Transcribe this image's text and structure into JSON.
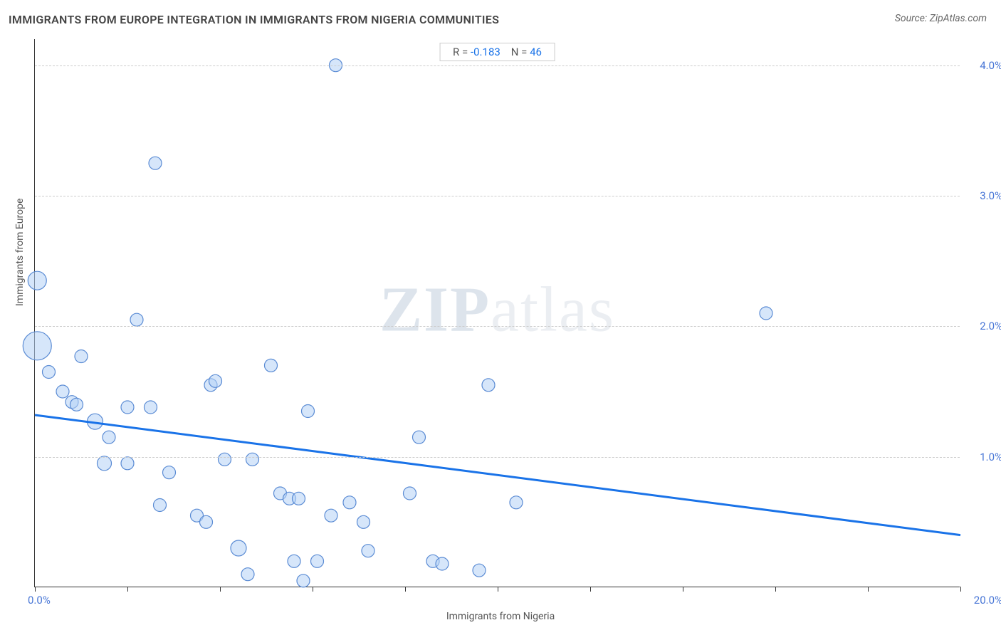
{
  "title": "IMMIGRANTS FROM EUROPE INTEGRATION IN IMMIGRANTS FROM NIGERIA COMMUNITIES",
  "source": "Source: ZipAtlas.com",
  "watermark": "ZIPatlas",
  "chart": {
    "type": "scatter",
    "xlabel": "Immigrants from Nigeria",
    "ylabel": "Immigrants from Europe",
    "xlim": [
      0.0,
      20.0
    ],
    "ylim": [
      0.0,
      4.2
    ],
    "x_tick_min_label": "0.0%",
    "x_tick_max_label": "20.0%",
    "x_tick_positions": [
      0,
      2,
      4,
      6,
      8,
      10,
      12,
      14,
      16,
      18,
      20
    ],
    "y_gridlines": [
      1.0,
      2.0,
      3.0,
      4.0
    ],
    "y_tick_labels": [
      "1.0%",
      "2.0%",
      "3.0%",
      "4.0%"
    ],
    "background_color": "#ffffff",
    "grid_color": "#cccccc",
    "axis_color": "#333333",
    "label_fontsize": 14,
    "tick_label_color": "#4876d6",
    "marker_fill": "rgba(180,210,245,0.55)",
    "marker_stroke": "#5a8bd4",
    "marker_base_radius": 9,
    "trend_color": "#1a73e8",
    "trend_width": 3,
    "trend_line": {
      "x1": 0.0,
      "y1": 1.32,
      "x2": 20.0,
      "y2": 0.4
    },
    "stats": {
      "R_label": "R = ",
      "R_value": "-0.183",
      "N_label": "N = ",
      "N_value": "46"
    },
    "points": [
      {
        "x": 0.05,
        "y": 2.35,
        "r": 13
      },
      {
        "x": 0.05,
        "y": 1.85,
        "r": 20
      },
      {
        "x": 0.3,
        "y": 1.65,
        "r": 9
      },
      {
        "x": 0.6,
        "y": 1.5,
        "r": 9
      },
      {
        "x": 0.8,
        "y": 1.42,
        "r": 9
      },
      {
        "x": 0.9,
        "y": 1.4,
        "r": 9
      },
      {
        "x": 1.0,
        "y": 1.77,
        "r": 9
      },
      {
        "x": 1.3,
        "y": 1.27,
        "r": 11
      },
      {
        "x": 1.5,
        "y": 0.95,
        "r": 10
      },
      {
        "x": 1.6,
        "y": 1.15,
        "r": 9
      },
      {
        "x": 2.0,
        "y": 1.38,
        "r": 9
      },
      {
        "x": 2.0,
        "y": 0.95,
        "r": 9
      },
      {
        "x": 2.2,
        "y": 2.05,
        "r": 9
      },
      {
        "x": 2.5,
        "y": 1.38,
        "r": 9
      },
      {
        "x": 2.6,
        "y": 3.25,
        "r": 9
      },
      {
        "x": 2.7,
        "y": 0.63,
        "r": 9
      },
      {
        "x": 2.9,
        "y": 0.88,
        "r": 9
      },
      {
        "x": 3.5,
        "y": 0.55,
        "r": 9
      },
      {
        "x": 3.7,
        "y": 0.5,
        "r": 9
      },
      {
        "x": 3.8,
        "y": 1.55,
        "r": 9
      },
      {
        "x": 3.9,
        "y": 1.58,
        "r": 9
      },
      {
        "x": 4.1,
        "y": 0.98,
        "r": 9
      },
      {
        "x": 4.4,
        "y": 0.3,
        "r": 11
      },
      {
        "x": 4.6,
        "y": 0.1,
        "r": 9
      },
      {
        "x": 4.7,
        "y": 0.98,
        "r": 9
      },
      {
        "x": 5.1,
        "y": 1.7,
        "r": 9
      },
      {
        "x": 5.3,
        "y": 0.72,
        "r": 9
      },
      {
        "x": 5.5,
        "y": 0.68,
        "r": 9
      },
      {
        "x": 5.6,
        "y": 0.2,
        "r": 9
      },
      {
        "x": 5.7,
        "y": 0.68,
        "r": 9
      },
      {
        "x": 5.8,
        "y": 0.05,
        "r": 9
      },
      {
        "x": 5.9,
        "y": 1.35,
        "r": 9
      },
      {
        "x": 6.1,
        "y": 0.2,
        "r": 9
      },
      {
        "x": 6.4,
        "y": 0.55,
        "r": 9
      },
      {
        "x": 6.5,
        "y": 4.0,
        "r": 9
      },
      {
        "x": 6.8,
        "y": 0.65,
        "r": 9
      },
      {
        "x": 7.1,
        "y": 0.5,
        "r": 9
      },
      {
        "x": 7.2,
        "y": 0.28,
        "r": 9
      },
      {
        "x": 8.1,
        "y": 0.72,
        "r": 9
      },
      {
        "x": 8.3,
        "y": 1.15,
        "r": 9
      },
      {
        "x": 8.6,
        "y": 0.2,
        "r": 9
      },
      {
        "x": 8.8,
        "y": 0.18,
        "r": 9
      },
      {
        "x": 9.6,
        "y": 0.13,
        "r": 9
      },
      {
        "x": 9.8,
        "y": 1.55,
        "r": 9
      },
      {
        "x": 10.4,
        "y": 0.65,
        "r": 9
      },
      {
        "x": 15.8,
        "y": 2.1,
        "r": 9
      }
    ]
  }
}
